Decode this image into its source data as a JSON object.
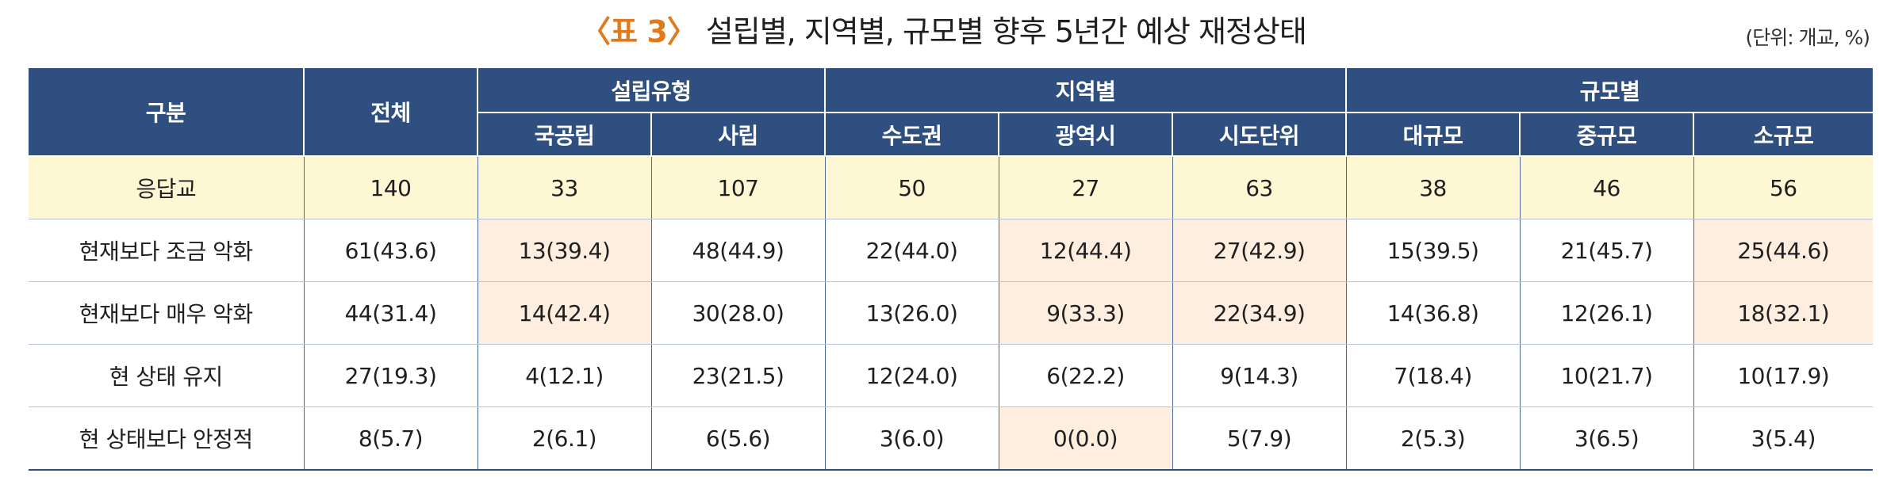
{
  "title": {
    "number": "〈표 3〉",
    "text": "설립별, 지역별, 규모별 향후 5년간 예상 재정상태"
  },
  "unit": "(단위: 개교, %)",
  "header": {
    "category": "구분",
    "total": "전체",
    "groups": [
      "설립유형",
      "지역별",
      "규모별"
    ],
    "subs": [
      "국공립",
      "사립",
      "수도권",
      "광역시",
      "시도단위",
      "대규모",
      "중규모",
      "소규모"
    ]
  },
  "rows": [
    {
      "label": "응답교",
      "values": [
        "140",
        "33",
        "107",
        "50",
        "27",
        "63",
        "38",
        "46",
        "56"
      ]
    },
    {
      "label": "현재보다 조금 악화",
      "values": [
        "61(43.6)",
        "13(39.4)",
        "48(44.9)",
        "22(44.0)",
        "12(44.4)",
        "27(42.9)",
        "15(39.5)",
        "21(45.7)",
        "25(44.6)"
      ]
    },
    {
      "label": "현재보다 매우 악화",
      "values": [
        "44(31.4)",
        "14(42.4)",
        "30(28.0)",
        "13(26.0)",
        "9(33.3)",
        "22(34.9)",
        "14(36.8)",
        "12(26.1)",
        "18(32.1)"
      ]
    },
    {
      "label": "현 상태 유지",
      "values": [
        "27(19.3)",
        "4(12.1)",
        "23(21.5)",
        "12(24.0)",
        "6(22.2)",
        "9(14.3)",
        "7(18.4)",
        "10(21.7)",
        "10(17.9)"
      ]
    },
    {
      "label": "현 상태보다 안정적",
      "values": [
        "8(5.7)",
        "2(6.1)",
        "6(5.6)",
        "3(6.0)",
        "0(0.0)",
        "5(7.9)",
        "2(5.3)",
        "3(6.5)",
        "3(5.4)"
      ]
    }
  ],
  "colors": {
    "header_bg": "#2e4f7f",
    "title_accent": "#e07a1a",
    "response_row_bg": "#fdf7d3",
    "highlight_cell_bg": "#fdeee0"
  }
}
